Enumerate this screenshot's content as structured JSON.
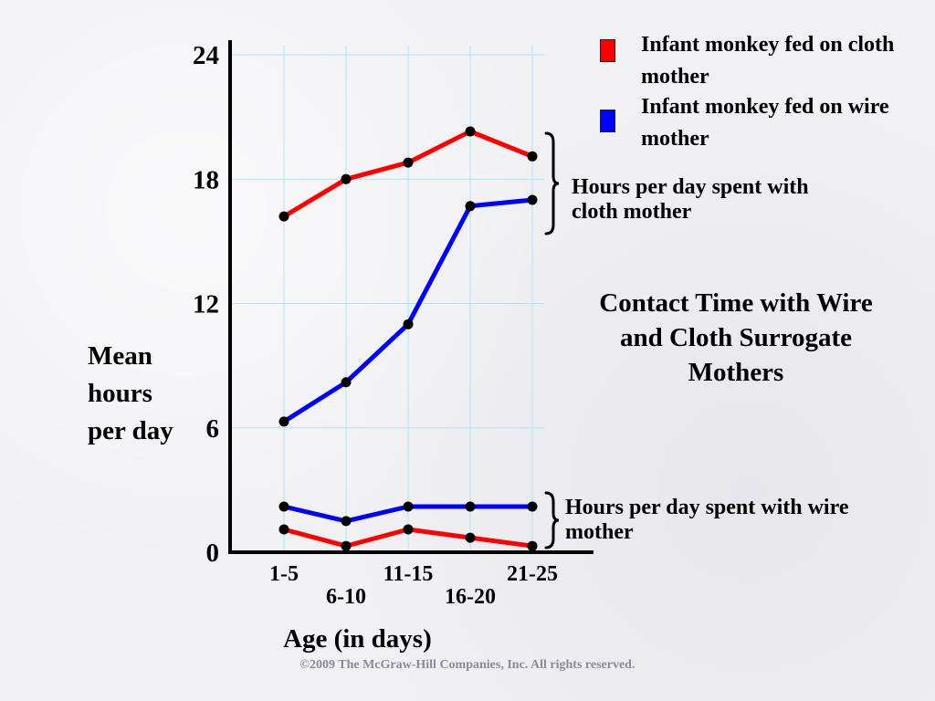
{
  "colors": {
    "cloth": "#ff0000",
    "wire": "#0000ff",
    "grid": "#a8e8f4"
  },
  "legend": [
    {
      "label": "Infant monkey fed on cloth mother",
      "color": "#ff0000"
    },
    {
      "label": "Infant monkey fed on wire mother",
      "color": "#0000ff"
    }
  ],
  "annotations": {
    "cloth_bracket": "Hours per day spent with cloth mother",
    "wire_bracket": "Hours per day spent with wire mother"
  },
  "title": "Contact Time with Wire and Cloth Surrogate Mothers",
  "ylabel": "Mean hours per day",
  "xlabel": "Age (in days)",
  "copyright": "©2009 The McGraw-Hill Companies, Inc. All rights reserved.",
  "chart_data": {
    "type": "line",
    "categories": [
      "1-5",
      "6-10",
      "11-15",
      "16-20",
      "21-25"
    ],
    "yticks": [
      0,
      6,
      12,
      18,
      24
    ],
    "ylim": [
      0,
      24
    ],
    "grid": true,
    "series": [
      {
        "group": "cloth",
        "color": "#ff0000",
        "values": [
          16.2,
          18.0,
          18.8,
          20.3,
          19.1
        ]
      },
      {
        "group": "cloth",
        "color": "#0000ff",
        "values": [
          6.3,
          8.2,
          11.0,
          16.7,
          17.0
        ]
      },
      {
        "group": "wire",
        "color": "#0000ff",
        "values": [
          2.2,
          1.5,
          2.2,
          2.2,
          2.2
        ]
      },
      {
        "group": "wire",
        "color": "#ff0000",
        "values": [
          1.1,
          0.3,
          1.1,
          0.7,
          0.3
        ]
      }
    ]
  }
}
